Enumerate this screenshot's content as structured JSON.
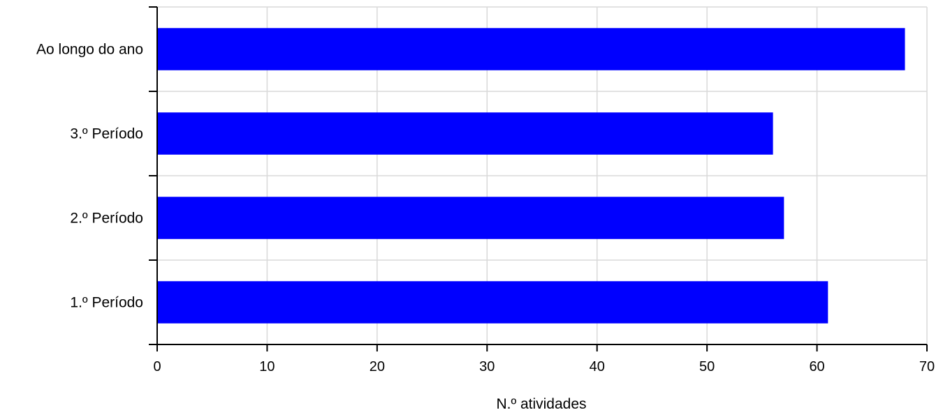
{
  "chart_data": {
    "type": "bar",
    "orientation": "horizontal",
    "categories": [
      "1.º Período",
      "2.º Período",
      "3.º Período",
      "Ao longo do ano"
    ],
    "values": [
      61,
      57,
      56,
      68
    ],
    "title": "",
    "xlabel": "N.º atividades",
    "ylabel": "",
    "xlim": [
      0,
      70
    ],
    "xticks": [
      "0",
      "10",
      "20",
      "30",
      "40",
      "50",
      "60",
      "70"
    ],
    "grid": true,
    "legend": "none",
    "bar_color": "#0000ff"
  }
}
